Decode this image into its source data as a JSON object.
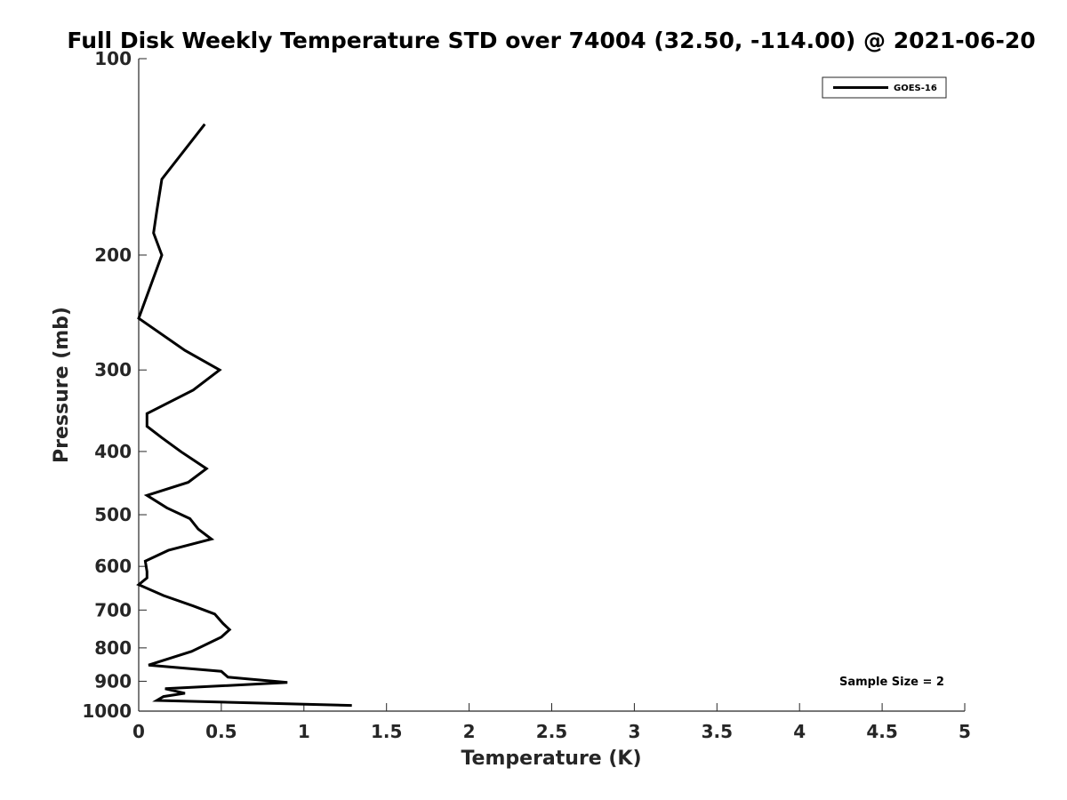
{
  "chart_data": {
    "type": "line",
    "title": "Full Disk Weekly Temperature STD over 74004 (32.50, -114.00) @ 2021-06-20",
    "xlabel": "Temperature (K)",
    "ylabel": "Pressure (mb)",
    "xlim": [
      0,
      5
    ],
    "ylim": [
      100,
      1000
    ],
    "y_scale": "log",
    "y_reversed": true,
    "x_ticks": [
      0,
      0.5,
      1,
      1.5,
      2,
      2.5,
      3,
      3.5,
      4,
      4.5,
      5
    ],
    "x_tick_labels": [
      "0",
      "0.5",
      "1",
      "1.5",
      "2",
      "2.5",
      "3",
      "3.5",
      "4",
      "4.5",
      "5"
    ],
    "y_ticks": [
      100,
      200,
      300,
      400,
      500,
      600,
      700,
      800,
      900,
      1000
    ],
    "y_tick_labels": [
      "100",
      "200",
      "300",
      "400",
      "500",
      "600",
      "700",
      "800",
      "900",
      "1000"
    ],
    "grid": false,
    "legend": {
      "position": "top-right",
      "entries": [
        "GOES-16"
      ]
    },
    "annotation": "Sample Size = 2",
    "series": [
      {
        "name": "GOES-16",
        "color": "#000000",
        "points": [
          [
            0.4,
            126
          ],
          [
            0.14,
            153
          ],
          [
            0.11,
            171
          ],
          [
            0.09,
            185
          ],
          [
            0.14,
            200
          ],
          [
            0.0,
            250
          ],
          [
            0.28,
            280
          ],
          [
            0.49,
            300
          ],
          [
            0.33,
            322
          ],
          [
            0.05,
            350
          ],
          [
            0.05,
            366
          ],
          [
            0.14,
            381
          ],
          [
            0.26,
            401
          ],
          [
            0.41,
            425
          ],
          [
            0.3,
            446
          ],
          [
            0.05,
            467
          ],
          [
            0.17,
            488
          ],
          [
            0.31,
            507
          ],
          [
            0.36,
            526
          ],
          [
            0.44,
            545
          ],
          [
            0.18,
            567
          ],
          [
            0.04,
            589
          ],
          [
            0.05,
            611
          ],
          [
            0.05,
            625
          ],
          [
            0.0,
            640
          ],
          [
            0.15,
            665
          ],
          [
            0.33,
            690
          ],
          [
            0.46,
            710
          ],
          [
            0.51,
            734
          ],
          [
            0.55,
            750
          ],
          [
            0.5,
            770
          ],
          [
            0.32,
            810
          ],
          [
            0.06,
            850
          ],
          [
            0.5,
            869
          ],
          [
            0.54,
            887
          ],
          [
            0.9,
            904
          ],
          [
            0.16,
            924
          ],
          [
            0.28,
            939
          ],
          [
            0.15,
            950
          ],
          [
            0.11,
            963
          ],
          [
            1.29,
            980
          ]
        ]
      }
    ]
  }
}
